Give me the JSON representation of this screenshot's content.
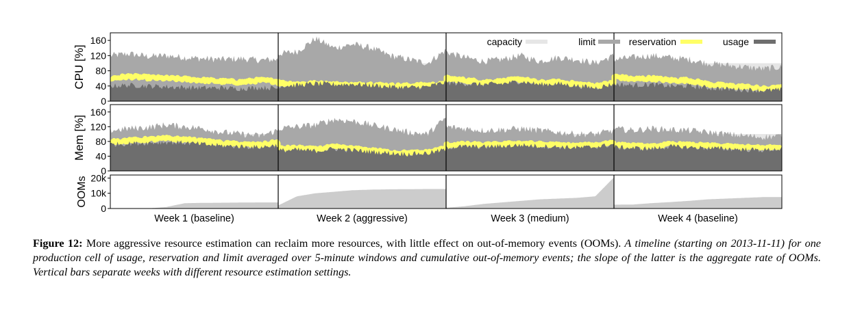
{
  "chart_data": {
    "type": "area",
    "x_categories": [
      "Week 1 (baseline)",
      "Week 2 (aggressive)",
      "Week 3 (medium)",
      "Week 4 (baseline)"
    ],
    "legend": [
      {
        "name": "capacity",
        "color": "#e6e6e6"
      },
      {
        "name": "limit",
        "color": "#a8a8a8"
      },
      {
        "name": "reservation",
        "color": "#ffff66"
      },
      {
        "name": "usage",
        "color": "#6e6e6e"
      }
    ],
    "legend_placement": "top-right",
    "grid": false,
    "panels": [
      {
        "id": "cpu",
        "ylabel": "CPU [%]",
        "ylim": [
          0,
          180
        ],
        "yticks": [
          "0",
          "40",
          "80",
          "120",
          "160"
        ],
        "ytick_values": [
          0,
          40,
          80,
          120,
          160
        ],
        "capacity_by_week": [
          100,
          100,
          100,
          100
        ],
        "limit_by_week": [
          [
            120,
            125,
            118,
            120,
            115,
            112,
            110,
            112,
            108,
            110
          ],
          [
            125,
            130,
            165,
            140,
            150,
            140,
            120,
            110,
            100,
            135
          ],
          [
            130,
            115,
            105,
            110,
            120,
            105,
            115,
            110,
            100,
            120
          ],
          [
            110,
            115,
            120,
            115,
            110,
            100,
            95,
            90,
            85,
            90
          ]
        ],
        "reservation_by_week": [
          [
            60,
            65,
            62,
            60,
            58,
            55,
            52,
            50,
            55,
            52
          ],
          [
            48,
            45,
            46,
            44,
            42,
            44,
            40,
            40,
            42,
            44
          ],
          [
            60,
            55,
            50,
            52,
            58,
            48,
            50,
            45,
            40,
            48
          ],
          [
            65,
            58,
            60,
            55,
            55,
            45,
            40,
            38,
            32,
            35
          ]
        ],
        "usage_by_week": [
          [
            40,
            42,
            40,
            38,
            36,
            35,
            35,
            33,
            36,
            34
          ],
          [
            40,
            42,
            46,
            44,
            45,
            42,
            38,
            36,
            38,
            50
          ],
          [
            48,
            46,
            44,
            46,
            52,
            44,
            46,
            40,
            35,
            45
          ],
          [
            45,
            42,
            44,
            40,
            40,
            35,
            32,
            30,
            28,
            30
          ]
        ]
      },
      {
        "id": "mem",
        "ylabel": "Mem [%]",
        "ylim": [
          0,
          180
        ],
        "yticks": [
          "0",
          "40",
          "80",
          "120",
          "160"
        ],
        "ytick_values": [
          0,
          40,
          80,
          120,
          160
        ],
        "capacity_by_week": [
          100,
          100,
          100,
          100
        ],
        "limit_by_week": [
          [
            110,
            115,
            118,
            125,
            120,
            115,
            105,
            100,
            95,
            110
          ],
          [
            115,
            120,
            125,
            140,
            135,
            125,
            115,
            105,
            100,
            145
          ],
          [
            120,
            115,
            110,
            112,
            115,
            110,
            105,
            100,
            100,
            110
          ],
          [
            115,
            110,
            115,
            112,
            110,
            105,
            100,
            95,
            92,
            95
          ]
        ],
        "reservation_by_week": [
          [
            80,
            82,
            85,
            88,
            85,
            80,
            75,
            72,
            70,
            78
          ],
          [
            60,
            62,
            58,
            65,
            60,
            55,
            50,
            48,
            50,
            62
          ],
          [
            70,
            72,
            70,
            72,
            75,
            72,
            70,
            68,
            70,
            78
          ],
          [
            70,
            68,
            65,
            72,
            70,
            68,
            66,
            64,
            62,
            65
          ]
        ],
        "usage_by_week": [
          [
            72,
            74,
            76,
            78,
            76,
            72,
            68,
            66,
            64,
            70
          ],
          [
            55,
            57,
            54,
            60,
            56,
            52,
            48,
            46,
            48,
            58
          ],
          [
            64,
            66,
            65,
            67,
            70,
            67,
            65,
            63,
            65,
            72
          ],
          [
            64,
            62,
            60,
            66,
            64,
            62,
            60,
            58,
            56,
            60
          ]
        ]
      },
      {
        "id": "ooms",
        "ylabel": "OOMs",
        "ylim": [
          0,
          22000
        ],
        "yticks": [
          "0",
          "10k",
          "20k"
        ],
        "ytick_values": [
          0,
          10000,
          20000
        ],
        "cumulative_by_week": [
          [
            0,
            0,
            0,
            1000,
            3500,
            3700,
            3800,
            3900,
            4000,
            4000
          ],
          [
            2000,
            8000,
            10000,
            11000,
            12000,
            12400,
            12600,
            12700,
            12800,
            12800
          ],
          [
            500,
            1500,
            3000,
            4000,
            5000,
            6000,
            6500,
            7000,
            8000,
            20500
          ],
          [
            2500,
            2600,
            3500,
            4200,
            5000,
            6000,
            6500,
            7000,
            7500,
            7500
          ]
        ]
      }
    ]
  },
  "caption": {
    "label": "Figure 12:",
    "bold_text": " More aggressive resource estimation can reclaim more resources, with little effect on out-of-memory events (OOMs).",
    "italic_text": " A timeline (starting on 2013-11-11) for one production cell of usage, reservation and limit averaged over 5-minute windows and cumulative out-of-memory events; the slope of the latter is the aggregate rate of OOMs. Vertical bars separate weeks with different resource estimation settings."
  }
}
